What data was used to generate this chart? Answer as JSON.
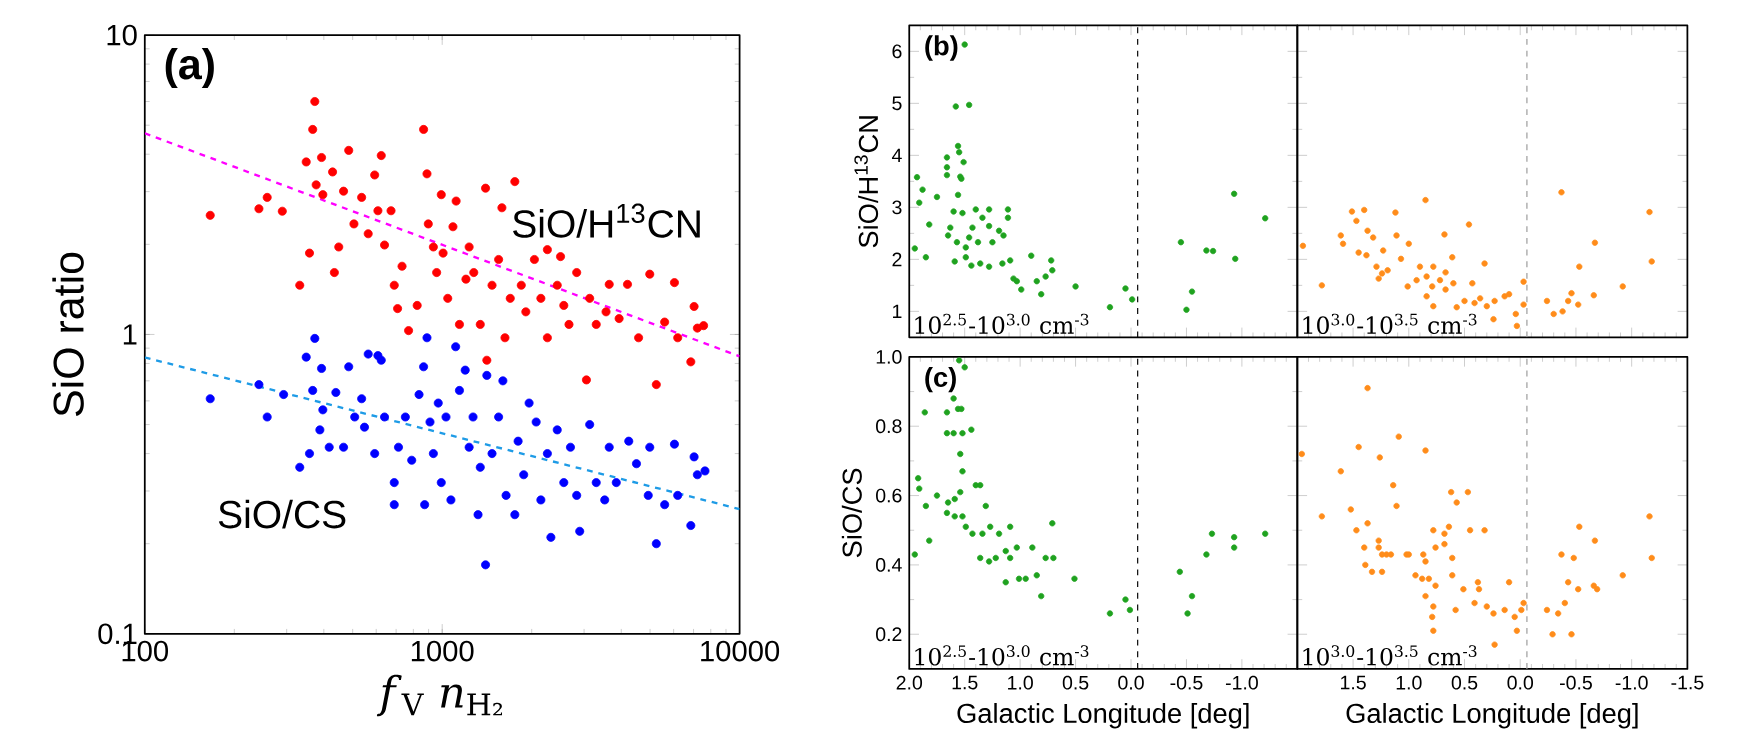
{
  "chart_data": [
    {
      "type": "scatter",
      "title": "(a)",
      "xlabel": "*f*$_{V}$ *n*$_{H₂}$",
      "ylabel": "SiO ratio",
      "log": "xy",
      "xlim": [
        100,
        10000
      ],
      "ylim": [
        0.1,
        10
      ],
      "xticks": [
        100,
        1000,
        10000
      ],
      "yticks": [
        0.1,
        1,
        10
      ],
      "marker": "circle",
      "series": [
        {
          "name": "SiO/H$^{13}$CN",
          "color": "#ff0000",
          "x": [
            166,
            242,
            258,
            290,
            332,
            349,
            358,
            367,
            373,
            377,
            393,
            397,
            428,
            434,
            449,
            466,
            485,
            505,
            536,
            564,
            593,
            608,
            624,
            640,
            673,
            690,
            708,
            733,
            771,
            824,
            866,
            889,
            898,
            934,
            958,
            993,
            1007,
            1044,
            1087,
            1114,
            1143,
            1202,
            1232,
            1277,
            1343,
            1399,
            1413,
            1471,
            1548,
            1588,
            1626,
            1694,
            1755,
            1845,
            1911,
            2042,
            2147,
            2258,
            2258,
            2437,
            2500,
            2564,
            2669,
            2833,
            3055,
            3133,
            3296,
            3556,
            3645,
            3935,
            4198,
            4575,
            4988,
            5248,
            5598,
            6039,
            6194,
            6855,
            7031,
            7211,
            7568
          ],
          "values": [
            2.5,
            2.63,
            2.87,
            2.58,
            1.46,
            3.77,
            1.87,
            4.84,
            6.0,
            3.16,
            3.9,
            2.93,
            3.49,
            1.61,
            1.96,
            3.01,
            4.12,
            2.34,
            2.87,
            2.17,
            3.41,
            2.59,
            3.96,
            1.99,
            2.59,
            1.46,
            1.22,
            1.69,
            1.03,
            1.25,
            4.84,
            3.44,
            2.34,
            1.96,
            1.61,
            2.93,
            1.87,
            1.32,
            2.29,
            2.79,
            1.08,
            1.53,
            1.96,
            1.61,
            1.08,
            3.08,
            0.82,
            1.46,
            1.78,
            2.65,
            0.975,
            1.32,
            3.24,
            1.46,
            1.19,
            1.78,
            1.32,
            1.92,
            0.975,
            1.46,
            1.82,
            1.25,
            1.08,
            1.61,
            0.705,
            1.32,
            1.08,
            1.19,
            1.47,
            1.13,
            1.47,
            0.975,
            1.59,
            0.68,
            1.1,
            1.49,
            0.975,
            0.81,
            1.24,
            1.05,
            1.07
          ]
        },
        {
          "name": "SiO/CS",
          "color": "#0000ff",
          "x": [
            166,
            242,
            258,
            293,
            332,
            349,
            358,
            373,
            367,
            388,
            393,
            397,
            417,
            439,
            466,
            485,
            508,
            536,
            548,
            564,
            593,
            608,
            624,
            640,
            690,
            690,
            713,
            752,
            790,
            836,
            866,
            873,
            889,
            910,
            934,
            970,
            993,
            1030,
            1070,
            1110,
            1143,
            1195,
            1232,
            1270,
            1320,
            1343,
            1399,
            1413,
            1471,
            1548,
            1600,
            1640,
            1755,
            1800,
            1880,
            1960,
            2070,
            2147,
            2258,
            2320,
            2437,
            2564,
            2700,
            2833,
            2900,
            3133,
            3296,
            3520,
            3645,
            3850,
            4240,
            4500,
            4930,
            4988,
            5248,
            5598,
            6039,
            6194,
            6855,
            7031,
            7211,
            7650
          ],
          "values": [
            0.61,
            0.68,
            0.53,
            0.63,
            0.36,
            0.84,
            0.4,
            0.97,
            0.65,
            0.48,
            0.77,
            0.56,
            0.42,
            0.64,
            0.42,
            0.78,
            0.53,
            0.61,
            0.49,
            0.86,
            0.4,
            0.85,
            0.82,
            0.53,
            0.32,
            0.27,
            0.42,
            0.53,
            0.38,
            0.63,
            0.78,
            0.27,
            0.975,
            0.51,
            0.4,
            0.59,
            0.32,
            0.53,
            0.28,
            0.91,
            0.65,
            0.76,
            0.42,
            0.53,
            0.25,
            0.36,
            0.17,
            0.73,
            0.4,
            0.53,
            0.7,
            0.29,
            0.25,
            0.44,
            0.34,
            0.59,
            0.51,
            0.28,
            0.4,
            0.21,
            0.48,
            0.32,
            0.42,
            0.29,
            0.22,
            0.5,
            0.32,
            0.28,
            0.42,
            0.32,
            0.44,
            0.37,
            0.29,
            0.42,
            0.2,
            0.27,
            0.43,
            0.29,
            0.23,
            0.39,
            0.34,
            0.35
          ]
        },
        {
          "type": "line",
          "color": "#ff00ff",
          "line_style": "dashed",
          "marker": "none",
          "x": [
            100,
            10000
          ],
          "values": [
            4.7,
            0.845
          ]
        },
        {
          "type": "line",
          "color": "#1e9be6",
          "line_style": "dashed",
          "marker": "none",
          "x": [
            100,
            10000
          ],
          "values": [
            0.838,
            0.261
          ]
        }
      ]
    },
    {
      "type": "scatter",
      "title": "(b)",
      "ylabel": "SiO/H$^{13}$CN",
      "xlim": [
        2.0,
        -1.5
      ],
      "ylim": [
        0.5,
        6.5
      ],
      "xticks": [
        2.0,
        1.5,
        1.0,
        0.5,
        0.0,
        -0.5,
        -1.0,
        -1.5
      ],
      "yticks": [
        1,
        2,
        3,
        4,
        5,
        6
      ],
      "tick_labels": "y",
      "marker": "circle",
      "annotations": [
        "10$^{2.5}$-10$^{3.0}$ cm$^{-3}$"
      ],
      "ref_lines": [
        {
          "axis": "x",
          "value": -0.06,
          "color": "#000000",
          "line_style": "dashed"
        }
      ],
      "series": [
        {
          "color": "#1fa21f",
          "x": [
            1.5,
            1.58,
            1.46,
            1.56,
            1.55,
            1.66,
            1.51,
            1.66,
            1.93,
            1.54,
            1.53,
            1.66,
            1.88,
            1.91,
            1.75,
            1.56,
            1.82,
            1.6,
            1.52,
            1.4,
            1.28,
            1.11,
            1.34,
            1.63,
            1.43,
            1.28,
            1.19,
            1.11,
            1.65,
            1.57,
            1.46,
            1.38,
            1.25,
            1.15,
            1.49,
            1.95,
            1.85,
            1.59,
            1.49,
            1.44,
            1.36,
            1.28,
            1.16,
            1.09,
            1.06,
            1.03,
            0.99,
            0.9,
            0.85,
            0.81,
            0.72,
            0.71,
            0.77,
            0.5,
            0.19,
            0.05,
            -0.01,
            -0.45,
            -0.55,
            -0.5,
            -0.68,
            -0.74,
            -0.93,
            -0.94,
            -1.21
          ],
          "values": [
            6.13,
            4.94,
            4.97,
            4.18,
            4.06,
            3.96,
            3.87,
            3.77,
            3.58,
            3.59,
            3.55,
            3.62,
            3.34,
            3.09,
            3.2,
            3.24,
            2.67,
            2.92,
            2.89,
            2.96,
            2.96,
            2.96,
            2.8,
            2.61,
            2.61,
            2.64,
            2.55,
            2.8,
            2.46,
            2.33,
            2.42,
            2.33,
            2.33,
            2.46,
            2.23,
            2.21,
            2.04,
            1.96,
            2.04,
            1.88,
            1.92,
            1.86,
            1.92,
            1.98,
            1.63,
            1.58,
            1.42,
            2.07,
            1.58,
            1.33,
            1.98,
            1.79,
            1.67,
            1.48,
            1.08,
            1.44,
            1.23,
            2.33,
            1.38,
            1.03,
            2.17,
            2.16,
            3.26,
            2.01,
            2.79
          ]
        }
      ]
    },
    {
      "type": "scatter",
      "xlim": [
        2.0,
        -1.5
      ],
      "ylim": [
        0.5,
        6.5
      ],
      "xticks": [
        2.0,
        1.5,
        1.0,
        0.5,
        0.0,
        -0.5,
        -1.0,
        -1.5
      ],
      "yticks": [
        1,
        2,
        3,
        4,
        5,
        6
      ],
      "tick_labels": false,
      "marker": "circle",
      "annotations": [
        "10$^{3.0}$-10$^{3.5}$ cm$^{-3}$"
      ],
      "ref_lines": [
        {
          "axis": "x",
          "value": -0.06,
          "color": "#999999",
          "line_style": "dashed"
        }
      ],
      "series": [
        {
          "color": "#ff8c1a",
          "x": [
            1.95,
            1.78,
            1.61,
            1.59,
            1.51,
            1.4,
            1.47,
            1.37,
            1.45,
            1.38,
            1.32,
            1.23,
            1.12,
            1.11,
            1.29,
            1.24,
            1.19,
            1.27,
            1.07,
            1.0,
            0.85,
            0.9,
            1.01,
            0.93,
            0.84,
            0.78,
            0.79,
            0.72,
            0.67,
            0.61,
            0.68,
            0.84,
            0.78,
            0.67,
            0.6,
            0.46,
            0.43,
            0.57,
            0.5,
            0.41,
            0.36,
            0.32,
            0.3,
            0.24,
            0.23,
            0.14,
            0.1,
            0.04,
            0.03,
            -0.03,
            -0.03,
            -0.24,
            -0.3,
            -0.37,
            -0.38,
            -0.43,
            -0.46,
            -0.52,
            -0.53,
            -0.66,
            -0.67,
            -0.92,
            -1.16,
            -1.18
          ],
          "values": [
            2.26,
            1.5,
            2.46,
            2.3,
            2.92,
            2.95,
            2.74,
            2.55,
            2.13,
            2.08,
            2.42,
            2.17,
            2.9,
            2.46,
            1.86,
            1.73,
            1.79,
            1.63,
            2.01,
            2.3,
            3.14,
            1.86,
            1.48,
            1.6,
            1.67,
            1.86,
            1.48,
            1.6,
            1.75,
            2.04,
            2.48,
            1.29,
            1.1,
            1.42,
            1.54,
            2.67,
            1.54,
            1.08,
            1.2,
            1.16,
            1.25,
            1.92,
            1.1,
            0.85,
            1.2,
            1.29,
            1.33,
            0.95,
            0.72,
            1.57,
            1.13,
            1.2,
            0.95,
            3.29,
            1.0,
            1.2,
            1.35,
            1.13,
            1.86,
            1.31,
            2.32,
            1.48,
            2.91,
            1.96
          ]
        }
      ]
    },
    {
      "type": "scatter",
      "title": "(c)",
      "ylabel": "SiO/CS",
      "xlabel": "Galactic Longitude [deg]",
      "xlim": [
        2.0,
        -1.5
      ],
      "ylim": [
        0.1,
        1.0
      ],
      "xticks": [
        {
          "value": 2,
          "label": "2.0"
        },
        1.5,
        {
          "value": 1,
          "label": "1.0"
        },
        0.5,
        {
          "value": 0,
          "label": "0.0"
        },
        -0.5,
        {
          "value": -1,
          "label": "-1.0"
        },
        {
          "value": -1.5,
          "label": null
        }
      ],
      "yticks": [
        0.2,
        0.4,
        0.6,
        0.8,
        {
          "value": 1,
          "label": "1.0"
        }
      ],
      "marker": "circle",
      "annotations": [
        "10$^{2.5}$-10$^{3.0}$ cm$^{-3}$"
      ],
      "ref_lines": [
        {
          "axis": "x",
          "value": -0.06,
          "color": "#000000",
          "line_style": "dashed"
        }
      ],
      "series": [
        {
          "color": "#1fa21f",
          "x": [
            1.55,
            1.5,
            1.86,
            1.6,
            1.56,
            1.53,
            1.66,
            1.66,
            1.6,
            1.52,
            1.44,
            1.54,
            1.52,
            1.92,
            1.91,
            1.85,
            1.75,
            1.65,
            1.59,
            1.54,
            1.4,
            1.36,
            1.66,
            1.59,
            1.52,
            1.31,
            1.49,
            1.43,
            1.34,
            1.27,
            1.19,
            1.09,
            1.82,
            1.95,
            1.36,
            1.28,
            1.22,
            1.13,
            1.09,
            1.03,
            0.89,
            0.77,
            0.71,
            0.7,
            1.13,
            1.01,
            0.95,
            0.85,
            0.81,
            0.51,
            0.19,
            0.05,
            0.01,
            -0.44,
            -0.55,
            -0.51,
            -0.68,
            -0.73,
            -0.93,
            -0.93,
            -1.21
          ],
          "values": [
            0.99,
            0.97,
            0.84,
            0.88,
            0.85,
            0.85,
            0.84,
            0.78,
            0.78,
            0.78,
            0.79,
            0.72,
            0.67,
            0.65,
            0.62,
            0.57,
            0.6,
            0.58,
            0.59,
            0.61,
            0.63,
            0.63,
            0.55,
            0.54,
            0.54,
            0.57,
            0.51,
            0.49,
            0.49,
            0.51,
            0.49,
            0.51,
            0.47,
            0.43,
            0.42,
            0.41,
            0.42,
            0.44,
            0.42,
            0.45,
            0.45,
            0.42,
            0.52,
            0.42,
            0.35,
            0.36,
            0.36,
            0.37,
            0.31,
            0.36,
            0.26,
            0.3,
            0.27,
            0.38,
            0.31,
            0.26,
            0.43,
            0.49,
            0.48,
            0.45,
            0.49
          ]
        }
      ]
    },
    {
      "type": "scatter",
      "xlabel": "Galactic Longitude [deg]",
      "xlim": [
        2.0,
        -1.5
      ],
      "ylim": [
        0.1,
        1.0
      ],
      "xticks": [
        {
          "value": 2,
          "label": null
        },
        1.5,
        {
          "value": 1,
          "label": "1.0"
        },
        0.5,
        {
          "value": 0,
          "label": "0.0"
        },
        -0.5,
        {
          "value": -1,
          "label": "-1.0"
        },
        -1.5
      ],
      "yticks": [
        0.2,
        0.4,
        0.6,
        0.8,
        1
      ],
      "tick_labels": "x",
      "marker": "circle",
      "annotations": [
        "10$^{3.0}$-10$^{3.5}$ cm$^{-3}$"
      ],
      "ref_lines": [
        {
          "axis": "x",
          "value": -0.06,
          "color": "#999999",
          "line_style": "dashed"
        }
      ],
      "series": [
        {
          "color": "#ff8c1a",
          "x": [
            1.96,
            1.78,
            1.61,
            1.45,
            1.37,
            1.52,
            1.47,
            1.37,
            1.4,
            1.39,
            1.33,
            1.27,
            1.27,
            1.24,
            1.2,
            1.24,
            1.26,
            1.14,
            1.11,
            1.09,
            1.16,
            1.02,
            1.0,
            0.85,
            0.87,
            0.85,
            0.78,
            0.76,
            0.68,
            0.68,
            0.64,
            0.61,
            0.94,
            0.88,
            0.82,
            0.76,
            0.85,
            0.78,
            0.79,
            0.78,
            0.62,
            0.57,
            0.47,
            0.61,
            0.58,
            0.45,
            0.51,
            0.41,
            0.38,
            0.37,
            0.32,
            0.3,
            0.24,
            0.23,
            0.14,
            0.1,
            0.05,
            0.03,
            -0.01,
            -0.03,
            -0.24,
            -0.29,
            -0.34,
            -0.37,
            -0.4,
            -0.43,
            -0.46,
            -0.48,
            -0.52,
            -0.53,
            -0.66,
            -0.67,
            -0.69,
            -0.92,
            -1.16,
            -1.18
          ],
          "values": [
            0.72,
            0.54,
            0.67,
            0.74,
            0.91,
            0.56,
            0.5,
            0.52,
            0.45,
            0.4,
            0.38,
            0.47,
            0.45,
            0.43,
            0.43,
            0.38,
            0.71,
            0.63,
            0.57,
            0.77,
            0.43,
            0.43,
            0.43,
            0.73,
            0.43,
            0.41,
            0.5,
            0.45,
            0.49,
            0.46,
            0.51,
            0.42,
            0.37,
            0.36,
            0.36,
            0.34,
            0.31,
            0.28,
            0.25,
            0.21,
            0.61,
            0.58,
            0.61,
            0.37,
            0.27,
            0.5,
            0.33,
            0.29,
            0.35,
            0.33,
            0.5,
            0.28,
            0.26,
            0.17,
            0.27,
            0.35,
            0.25,
            0.21,
            0.27,
            0.29,
            0.27,
            0.2,
            0.26,
            0.43,
            0.29,
            0.35,
            0.2,
            0.42,
            0.33,
            0.51,
            0.34,
            0.47,
            0.33,
            0.37,
            0.54,
            0.42
          ]
        }
      ]
    }
  ]
}
